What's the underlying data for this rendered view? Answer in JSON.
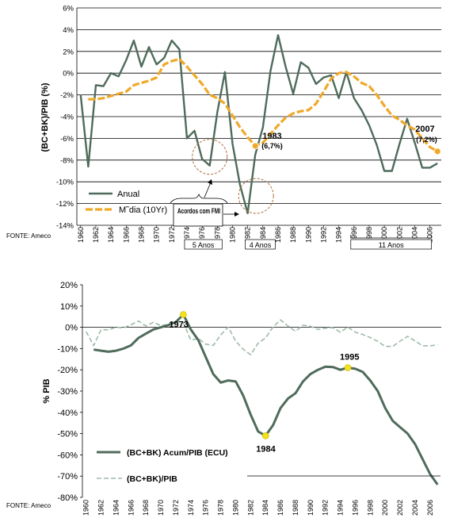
{
  "chart_data": [
    {
      "type": "line",
      "ylabel": "(BC+BK)/PIB (%)",
      "ylim": [
        -14,
        6
      ],
      "yticks": [
        "6%",
        "4%",
        "2%",
        "0%",
        "-2%",
        "-4%",
        "-6%",
        "-8%",
        "-10%",
        "-12%",
        "-14%"
      ],
      "xticks": [
        "1960",
        "1962",
        "1964",
        "1966",
        "1968",
        "1970",
        "1972",
        "1974",
        "1976",
        "1978",
        "1980",
        "1982",
        "1984",
        "1986",
        "1988",
        "1990",
        "1992",
        "1994",
        "1996",
        "1998",
        "2000",
        "2002",
        "2004",
        "2006"
      ],
      "grid": true,
      "source": "FONTE: Ameco",
      "series": [
        {
          "name": "Anual",
          "color": "#4f6b5b",
          "x": [
            1960,
            1961,
            1962,
            1963,
            1964,
            1965,
            1966,
            1967,
            1968,
            1969,
            1970,
            1971,
            1972,
            1973,
            1974,
            1975,
            1976,
            1977,
            1978,
            1979,
            1980,
            1981,
            1982,
            1983,
            1984,
            1985,
            1986,
            1987,
            1988,
            1989,
            1990,
            1991,
            1992,
            1993,
            1994,
            1995,
            1996,
            1997,
            1998,
            1999,
            2000,
            2001,
            2002,
            2003,
            2004,
            2005,
            2006,
            2007
          ],
          "values": [
            -2,
            -8.6,
            -1.1,
            -1.2,
            0,
            -0.3,
            1.2,
            3,
            0.6,
            2.4,
            0.8,
            1.4,
            3,
            2.2,
            -6,
            -5.3,
            -7.9,
            -8.5,
            -3.6,
            0.1,
            -6.5,
            -10.3,
            -12.9,
            -7.5,
            -5,
            0.2,
            3.5,
            0.6,
            -1.9,
            1,
            0.5,
            -1,
            -0.4,
            -0.2,
            -2.3,
            0.1,
            -2.3,
            -3.4,
            -4.8,
            -6.6,
            -9,
            -9,
            -6.5,
            -4.2,
            -6.4,
            -8.7,
            -8.7,
            -8.3
          ]
        },
        {
          "name": "M˜dia (10Yr)",
          "color": "#f0a829",
          "x": [
            1961,
            1962,
            1963,
            1964,
            1965,
            1966,
            1967,
            1968,
            1969,
            1970,
            1971,
            1972,
            1973,
            1974,
            1975,
            1976,
            1977,
            1978,
            1979,
            1980,
            1981,
            1982,
            1983,
            1984,
            1985,
            1986,
            1987,
            1988,
            1989,
            1990,
            1991,
            1992,
            1993,
            1994,
            1995,
            1996,
            1997,
            1998,
            1999,
            2000,
            2001,
            2002,
            2003,
            2004,
            2005,
            2006,
            2007
          ],
          "values": [
            -2.4,
            -2.4,
            -2.3,
            -2.1,
            -1.9,
            -1.7,
            -1.1,
            -0.9,
            -0.7,
            -0.4,
            0.8,
            1.1,
            1.3,
            0.6,
            -0.2,
            -1,
            -2,
            -2.3,
            -2.8,
            -3.9,
            -5,
            -5.9,
            -6.7,
            -6.4,
            -5.6,
            -4.8,
            -4.1,
            -3.7,
            -3.5,
            -3.4,
            -2.8,
            -1.7,
            -0.5,
            0,
            0.1,
            -0.3,
            -0.9,
            -1.2,
            -2,
            -3,
            -3.9,
            -4.3,
            -4.8,
            -5.2,
            -6,
            -6.8,
            -7.2
          ]
        }
      ],
      "highlights": [
        {
          "x": 1983,
          "y": -6.7,
          "label": "1983",
          "sublabel": "(6,7%)"
        },
        {
          "x": 2007,
          "y": -7.2,
          "label": "2007",
          "sublabel": "(7,2%)"
        }
      ],
      "annotation": "Acordos com FMI",
      "annotation_line2": "",
      "periods": [
        "5 Anos",
        "4 Anos",
        "11 Anos"
      ],
      "marker_color": "#f0a829"
    },
    {
      "type": "line",
      "ylabel": "% PIB",
      "ylim": [
        -80,
        20
      ],
      "yticks": [
        "20%",
        "10%",
        "0%",
        "-10%",
        "-20%",
        "-30%",
        "-40%",
        "-50%",
        "-60%",
        "-70%",
        "-80%"
      ],
      "xticks": [
        "1960",
        "1962",
        "1964",
        "1966",
        "1968",
        "1970",
        "1972",
        "1974",
        "1976",
        "1978",
        "1980",
        "1982",
        "1984",
        "1986",
        "1988",
        "1990",
        "1992",
        "1994",
        "1996",
        "1998",
        "2000",
        "2002",
        "2004",
        "2006"
      ],
      "grid": false,
      "source": "FONTE: Ameco",
      "series": [
        {
          "name": "(BC+BK) Acum/PIB (ECU)",
          "color": "#4f6b5b",
          "x": [
            1961,
            1962,
            1963,
            1964,
            1965,
            1966,
            1967,
            1968,
            1969,
            1970,
            1971,
            1972,
            1973,
            1974,
            1975,
            1976,
            1977,
            1978,
            1979,
            1980,
            1981,
            1982,
            1983,
            1984,
            1985,
            1986,
            1987,
            1988,
            1989,
            1990,
            1991,
            1992,
            1993,
            1994,
            1995,
            1996,
            1997,
            1998,
            1999,
            2000,
            2001,
            2002,
            2003,
            2004,
            2005,
            2006,
            2007
          ],
          "values": [
            -10.5,
            -11,
            -11.5,
            -11,
            -10,
            -8.5,
            -5,
            -3,
            -1,
            0,
            1,
            2.5,
            6,
            -1,
            -6,
            -14,
            -22,
            -26,
            -25,
            -25.5,
            -32,
            -41,
            -49,
            -51,
            -46,
            -38,
            -33.5,
            -31,
            -25.5,
            -22,
            -20,
            -18.5,
            -18.7,
            -20,
            -19,
            -19.5,
            -21,
            -25,
            -30,
            -38,
            -44,
            -47,
            -50,
            -55,
            -62,
            -69,
            -74
          ]
        },
        {
          "name": "(BC+BK)/PIB",
          "color": "#9fbba8",
          "x": [
            1960,
            1961,
            1962,
            1963,
            1964,
            1965,
            1966,
            1967,
            1968,
            1969,
            1970,
            1971,
            1972,
            1973,
            1974,
            1975,
            1976,
            1977,
            1978,
            1979,
            1980,
            1981,
            1982,
            1983,
            1984,
            1985,
            1986,
            1987,
            1988,
            1989,
            1990,
            1991,
            1992,
            1993,
            1994,
            1995,
            1996,
            1997,
            1998,
            1999,
            2000,
            2001,
            2002,
            2003,
            2004,
            2005,
            2006,
            2007
          ],
          "values": [
            -2,
            -8.6,
            -1.1,
            -1.2,
            0,
            -0.3,
            1.2,
            3,
            0.6,
            2.4,
            0.8,
            1.4,
            3,
            2.2,
            -6,
            -5.3,
            -7.9,
            -8.5,
            -3.6,
            0.1,
            -6.5,
            -10.3,
            -12.9,
            -7.5,
            -5,
            0.2,
            3.5,
            0.6,
            -1.9,
            1,
            0.5,
            -1,
            -0.4,
            -0.2,
            -2.3,
            0.1,
            -2.3,
            -3.4,
            -4.8,
            -6.6,
            -9,
            -9,
            -6.5,
            -4.2,
            -6.4,
            -8.7,
            -8.7,
            -8.3
          ]
        }
      ],
      "highlights": [
        {
          "x": 1973,
          "y": 6,
          "label": "1973"
        },
        {
          "x": 1984,
          "y": -51,
          "label": "1984"
        },
        {
          "x": 1995,
          "y": -19,
          "label": "1995"
        }
      ],
      "marker_color": "#f2e21d"
    }
  ]
}
